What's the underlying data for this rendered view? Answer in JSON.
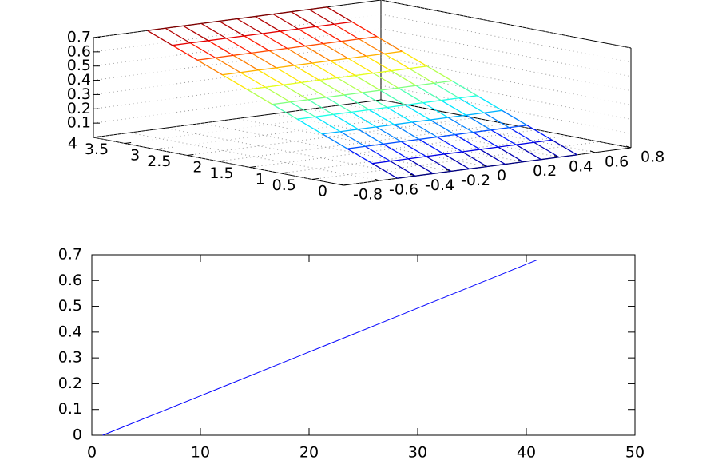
{
  "chart_data": [
    {
      "type": "surface",
      "colormap": "jet",
      "x": [
        -0.5,
        -0.4,
        -0.3,
        -0.2,
        -0.1,
        0,
        0.1,
        0.2,
        0.3,
        0.4,
        0.5
      ],
      "y": [
        0,
        0.4,
        0.8,
        1.2,
        1.6,
        2,
        2.4,
        2.8,
        3.2,
        3.6,
        4
      ],
      "z": [
        [
          0,
          0,
          0,
          0,
          0,
          0,
          0,
          0,
          0,
          0,
          0
        ],
        [
          0.07,
          0.07,
          0.07,
          0.07,
          0.07,
          0.07,
          0.07,
          0.07,
          0.07,
          0.07,
          0.07
        ],
        [
          0.14,
          0.14,
          0.14,
          0.14,
          0.14,
          0.14,
          0.14,
          0.14,
          0.14,
          0.14,
          0.14
        ],
        [
          0.21,
          0.21,
          0.21,
          0.21,
          0.21,
          0.21,
          0.21,
          0.21,
          0.21,
          0.21,
          0.21
        ],
        [
          0.28,
          0.28,
          0.28,
          0.28,
          0.28,
          0.28,
          0.28,
          0.28,
          0.28,
          0.28,
          0.28
        ],
        [
          0.35,
          0.35,
          0.35,
          0.35,
          0.35,
          0.35,
          0.35,
          0.35,
          0.35,
          0.35,
          0.35
        ],
        [
          0.42,
          0.42,
          0.42,
          0.42,
          0.42,
          0.42,
          0.42,
          0.42,
          0.42,
          0.42,
          0.42
        ],
        [
          0.49,
          0.49,
          0.49,
          0.49,
          0.49,
          0.49,
          0.49,
          0.49,
          0.49,
          0.49,
          0.49
        ],
        [
          0.56,
          0.56,
          0.56,
          0.56,
          0.56,
          0.56,
          0.56,
          0.56,
          0.56,
          0.56,
          0.56
        ],
        [
          0.63,
          0.63,
          0.63,
          0.63,
          0.63,
          0.63,
          0.63,
          0.63,
          0.63,
          0.63,
          0.63
        ],
        [
          0.7,
          0.7,
          0.7,
          0.7,
          0.7,
          0.7,
          0.7,
          0.7,
          0.7,
          0.7,
          0.7
        ]
      ],
      "xlim": [
        -0.8,
        0.8
      ],
      "ylim": [
        0,
        4
      ],
      "zlim": [
        0,
        0.7
      ],
      "xticks": [
        -0.8,
        -0.6,
        -0.4,
        -0.2,
        0,
        0.2,
        0.4,
        0.6,
        0.8
      ],
      "yticks": [
        0,
        0.5,
        1,
        1.5,
        2,
        2.5,
        3,
        3.5,
        4
      ],
      "zticks": [
        0.1,
        0.2,
        0.3,
        0.4,
        0.5,
        0.6,
        0.7
      ],
      "grid": true
    },
    {
      "type": "line",
      "x": [
        1,
        11,
        21,
        31,
        41
      ],
      "series": [
        {
          "color": "#0000ff",
          "values": [
            0,
            0.17,
            0.34,
            0.51,
            0.68
          ]
        }
      ],
      "xlim": [
        0,
        50
      ],
      "ylim": [
        0,
        0.7
      ],
      "xticks": [
        0,
        10,
        20,
        30,
        40,
        50
      ],
      "yticks": [
        0,
        0.1,
        0.2,
        0.3,
        0.4,
        0.5,
        0.6,
        0.7
      ]
    }
  ]
}
